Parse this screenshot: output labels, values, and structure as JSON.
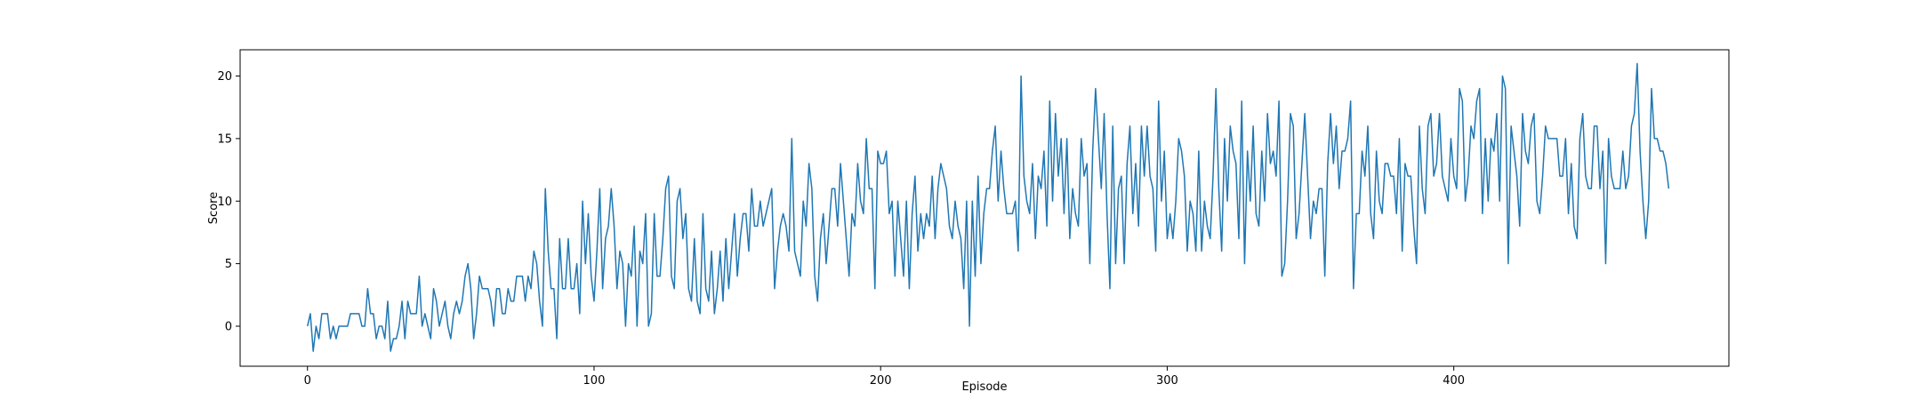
{
  "chart_data": {
    "type": "line",
    "title": "",
    "xlabel": "Episode",
    "ylabel": "Score",
    "xlim": [
      -23.5,
      496
    ],
    "ylim": [
      -3.2,
      22.1
    ],
    "xticks": [
      0,
      100,
      200,
      300,
      400
    ],
    "yticks": [
      0,
      5,
      10,
      15,
      20
    ],
    "grid": false,
    "legend": "none",
    "line_color": "#1f77b4",
    "series": [
      {
        "x_start": 0,
        "values": [
          0,
          1,
          -2,
          0,
          -1,
          1,
          1,
          1,
          -1,
          0,
          -1,
          0,
          0,
          0,
          0,
          1,
          1,
          1,
          1,
          0,
          0,
          3,
          1,
          1,
          -1,
          0,
          0,
          -1,
          2,
          -2,
          -1,
          -1,
          0,
          2,
          -1,
          2,
          1,
          1,
          1,
          4,
          0,
          1,
          0,
          -1,
          3,
          2,
          0,
          1,
          2,
          0,
          -1,
          1,
          2,
          1,
          2,
          4,
          5,
          3,
          -1,
          1,
          4,
          3,
          3,
          3,
          2,
          0,
          3,
          3,
          1,
          1,
          3,
          2,
          2,
          4,
          4,
          4,
          2,
          4,
          3,
          6,
          5,
          2,
          0,
          11,
          6,
          3,
          3,
          -1,
          7,
          3,
          3,
          7,
          3,
          3,
          5,
          1,
          10,
          5,
          9,
          4,
          2,
          6,
          11,
          3,
          7,
          8,
          11,
          8,
          3,
          6,
          5,
          0,
          5,
          4,
          8,
          0,
          6,
          5,
          9,
          0,
          1,
          9,
          4,
          4,
          7,
          11,
          12,
          4,
          3,
          10,
          11,
          7,
          9,
          3,
          2,
          7,
          2,
          1,
          9,
          3,
          2,
          6,
          1,
          3,
          6,
          2,
          7,
          3,
          6,
          9,
          4,
          7,
          9,
          9,
          6,
          11,
          8,
          8,
          10,
          8,
          9,
          10,
          11,
          3,
          6,
          8,
          9,
          8,
          6,
          15,
          6,
          5,
          4,
          10,
          8,
          13,
          11,
          4,
          2,
          7,
          9,
          5,
          8,
          11,
          11,
          8,
          13,
          10,
          7,
          4,
          9,
          8,
          13,
          10,
          9,
          15,
          11,
          11,
          3,
          14,
          13,
          13,
          14,
          9,
          10,
          4,
          10,
          7,
          4,
          10,
          3,
          9,
          12,
          6,
          9,
          7,
          9,
          8,
          12,
          7,
          11,
          13,
          12,
          11,
          8,
          7,
          10,
          8,
          7,
          3,
          10,
          0,
          10,
          4,
          12,
          5,
          9,
          11,
          11,
          14,
          16,
          10,
          14,
          11,
          9,
          9,
          9,
          10,
          6,
          20,
          12,
          10,
          9,
          13,
          7,
          12,
          11,
          14,
          8,
          18,
          10,
          17,
          12,
          15,
          9,
          15,
          7,
          11,
          9,
          8,
          15,
          12,
          13,
          5,
          14,
          19,
          15,
          11,
          17,
          9,
          3,
          16,
          5,
          11,
          12,
          5,
          13,
          16,
          9,
          13,
          8,
          16,
          12,
          16,
          12,
          11,
          6,
          18,
          10,
          14,
          7,
          9,
          7,
          10,
          15,
          14,
          12,
          6,
          10,
          9,
          6,
          14,
          6,
          10,
          8,
          7,
          12,
          19,
          11,
          6,
          15,
          10,
          16,
          14,
          13,
          7,
          18,
          5,
          14,
          10,
          16,
          9,
          8,
          14,
          10,
          17,
          13,
          14,
          12,
          18,
          4,
          5,
          10,
          17,
          16,
          7,
          9,
          13,
          17,
          12,
          7,
          10,
          9,
          11,
          11,
          4,
          13,
          17,
          13,
          16,
          11,
          14,
          14,
          15,
          18,
          3,
          9,
          9,
          14,
          12,
          16,
          9,
          7,
          14,
          10,
          9,
          13,
          13,
          12,
          12,
          9,
          15,
          6,
          13,
          12,
          12,
          8,
          5,
          16,
          11,
          9,
          16,
          17,
          12,
          13,
          17,
          12,
          11,
          10,
          15,
          12,
          11,
          19,
          18,
          10,
          12,
          16,
          15,
          18,
          19,
          9,
          15,
          10,
          15,
          14,
          17,
          10,
          20,
          19,
          5,
          16,
          14,
          12,
          8,
          17,
          14,
          13,
          16,
          17,
          10,
          9,
          12,
          16,
          15,
          15,
          15,
          15,
          12,
          12,
          15,
          9,
          13,
          8,
          7,
          15,
          17,
          12,
          11,
          11,
          16,
          16,
          11,
          14,
          5,
          15,
          12,
          11,
          11,
          11,
          14,
          11,
          12,
          16,
          17,
          21,
          14,
          10,
          7,
          10,
          19,
          15,
          15,
          14,
          14,
          13,
          11
        ]
      }
    ]
  }
}
